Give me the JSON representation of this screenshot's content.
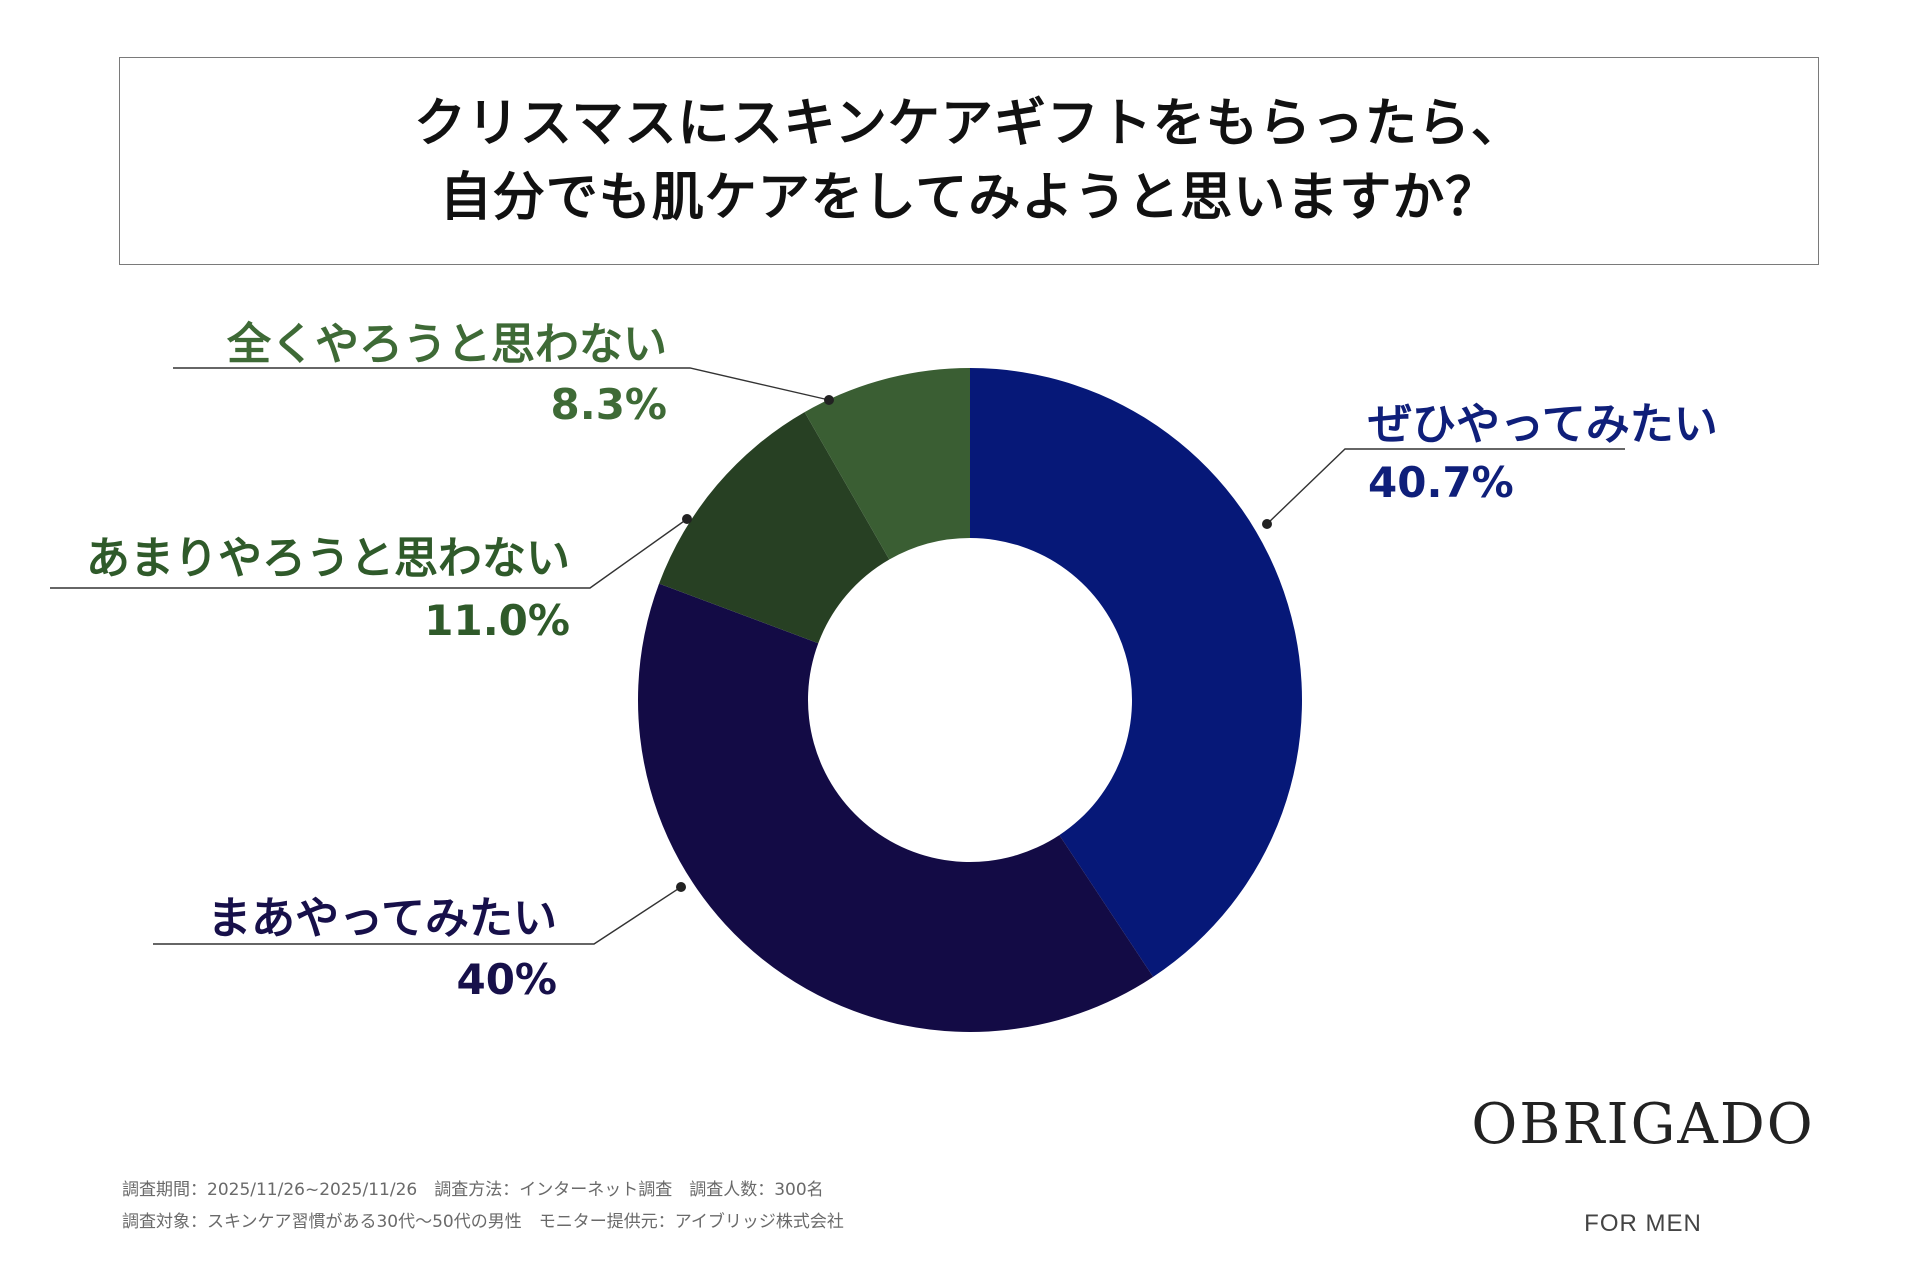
{
  "title": {
    "line1": "クリスマスにスキンケアギフトをもらったら、",
    "line2": "自分でも肌ケアをしてみようと思いますか？"
  },
  "chart_data": {
    "type": "pie",
    "variant": "donut",
    "title": "クリスマスにスキンケアギフトをもらったら、自分でも肌ケアをしてみようと思いますか？",
    "slices": [
      {
        "label": "ぜひやってみたい",
        "value": 40.7,
        "value_label": "40.7%",
        "color": "#061878"
      },
      {
        "label": "まあやってみたい",
        "value": 40.0,
        "value_label": "40%",
        "color": "#130b45"
      },
      {
        "label": "あまりやろうと思わない",
        "value": 11.0,
        "value_label": "11.0%",
        "color": "#274023"
      },
      {
        "label": "全くやろうと思わない",
        "value": 8.3,
        "value_label": "8.3%",
        "color": "#3a5e33"
      }
    ],
    "start": "12 o'clock",
    "direction": "clockwise",
    "label_colors": {
      "ぜひやってみたい": "#0f1f7a",
      "まあやってみたい": "#17104a",
      "あまりやろうと思わない": "#2f5a2a",
      "全くやろうと思わない": "#3e6a36"
    }
  },
  "footer": {
    "line1": "調査期間：2025/11/26~2025/11/26　調査方法：インターネット調査　調査人数：300名",
    "line2": "調査対象：スキンケア習慣がある30代〜50代の男性　モニター提供元：アイブリッジ株式会社"
  },
  "brand": {
    "name": "OBRIGADO",
    "sub": "FOR MEN"
  }
}
